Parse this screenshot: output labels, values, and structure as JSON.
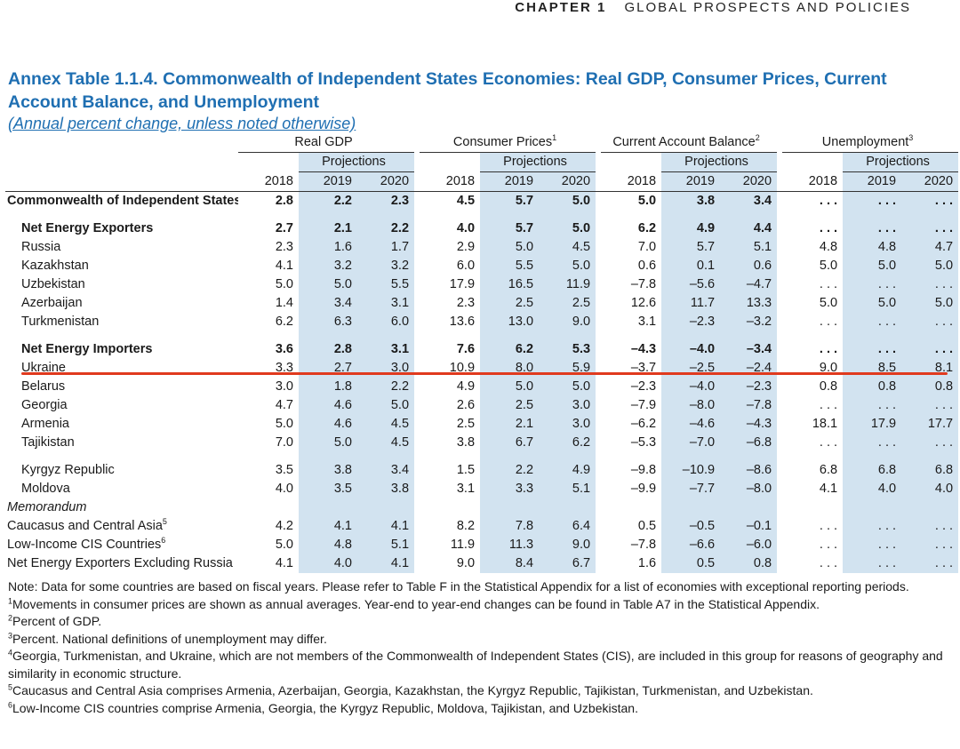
{
  "header": {
    "chapter": "CHAPTER 1",
    "section": "GLOBAL PROSPECTS AND POLICIES"
  },
  "title": "Annex Table 1.1.4. Commonwealth of Independent States Economies: Real GDP, Consumer Prices, Current Account Balance, and Unemployment",
  "subtitle": "(Annual percent change, unless noted otherwise)",
  "groups": [
    {
      "label": "Real GDP",
      "sup": ""
    },
    {
      "label": "Consumer Prices",
      "sup": "1"
    },
    {
      "label": "Current Account Balance",
      "sup": "2"
    },
    {
      "label": "Unemployment",
      "sup": "3"
    }
  ],
  "projections_label": "Projections",
  "years": [
    "2018",
    "2019",
    "2020"
  ],
  "rows": [
    {
      "label": "Commonwealth of Independent States",
      "sup": "4",
      "style": "bold-top",
      "values": [
        "2.8",
        "2.2",
        "2.3",
        "4.5",
        "5.7",
        "5.0",
        "5.0",
        "3.8",
        "3.4",
        ". . .",
        ". . .",
        ". . ."
      ]
    },
    {
      "spacer": true
    },
    {
      "label": "Net Energy Exporters",
      "style": "bold",
      "values": [
        "2.7",
        "2.1",
        "2.2",
        "4.0",
        "5.7",
        "5.0",
        "6.2",
        "4.9",
        "4.4",
        ". . .",
        ". . .",
        ". . ."
      ]
    },
    {
      "label": "Russia",
      "values": [
        "2.3",
        "1.6",
        "1.7",
        "2.9",
        "5.0",
        "4.5",
        "7.0",
        "5.7",
        "5.1",
        "4.8",
        "4.8",
        "4.7"
      ]
    },
    {
      "label": "Kazakhstan",
      "values": [
        "4.1",
        "3.2",
        "3.2",
        "6.0",
        "5.5",
        "5.0",
        "0.6",
        "0.1",
        "0.6",
        "5.0",
        "5.0",
        "5.0"
      ]
    },
    {
      "label": "Uzbekistan",
      "values": [
        "5.0",
        "5.0",
        "5.5",
        "17.9",
        "16.5",
        "11.9",
        "–7.8",
        "–5.6",
        "–4.7",
        ". . .",
        ". . .",
        ". . ."
      ]
    },
    {
      "label": "Azerbaijan",
      "values": [
        "1.4",
        "3.4",
        "3.1",
        "2.3",
        "2.5",
        "2.5",
        "12.6",
        "11.7",
        "13.3",
        "5.0",
        "5.0",
        "5.0"
      ]
    },
    {
      "label": "Turkmenistan",
      "values": [
        "6.2",
        "6.3",
        "6.0",
        "13.6",
        "13.0",
        "9.0",
        "3.1",
        "–2.3",
        "–3.2",
        ". . .",
        ". . .",
        ". . ."
      ]
    },
    {
      "spacer": true
    },
    {
      "label": "Net Energy Importers",
      "style": "bold",
      "values": [
        "3.6",
        "2.8",
        "3.1",
        "7.6",
        "6.2",
        "5.3",
        "–4.3",
        "–4.0",
        "–3.4",
        ". . .",
        ". . .",
        ". . ."
      ]
    },
    {
      "label": "Ukraine",
      "values": [
        "3.3",
        "2.7",
        "3.0",
        "10.9",
        "8.0",
        "5.9",
        "–3.7",
        "–2.5",
        "–2.4",
        "9.0",
        "8.5",
        "8.1"
      ]
    },
    {
      "label": "Belarus",
      "values": [
        "3.0",
        "1.8",
        "2.2",
        "4.9",
        "5.0",
        "5.0",
        "–2.3",
        "–4.0",
        "–2.3",
        "0.8",
        "0.8",
        "0.8"
      ]
    },
    {
      "label": "Georgia",
      "values": [
        "4.7",
        "4.6",
        "5.0",
        "2.6",
        "2.5",
        "3.0",
        "–7.9",
        "–8.0",
        "–7.8",
        ". . .",
        ". . .",
        ". . ."
      ]
    },
    {
      "label": "Armenia",
      "values": [
        "5.0",
        "4.6",
        "4.5",
        "2.5",
        "2.1",
        "3.0",
        "–6.2",
        "–4.6",
        "–4.3",
        "18.1",
        "17.9",
        "17.7"
      ]
    },
    {
      "label": "Tajikistan",
      "values": [
        "7.0",
        "5.0",
        "4.5",
        "3.8",
        "6.7",
        "6.2",
        "–5.3",
        "–7.0",
        "–6.8",
        ". . .",
        ". . .",
        ". . ."
      ]
    },
    {
      "spacer": true
    },
    {
      "label": "Kyrgyz Republic",
      "values": [
        "3.5",
        "3.8",
        "3.4",
        "1.5",
        "2.2",
        "4.9",
        "–9.8",
        "–10.9",
        "–8.6",
        "6.8",
        "6.8",
        "6.8"
      ]
    },
    {
      "label": "Moldova",
      "values": [
        "4.0",
        "3.5",
        "3.8",
        "3.1",
        "3.3",
        "5.1",
        "–9.9",
        "–7.7",
        "–8.0",
        "4.1",
        "4.0",
        "4.0"
      ]
    },
    {
      "label": "Memorandum",
      "style": "memo"
    },
    {
      "label": "Caucasus and Central Asia",
      "sup": "5",
      "style": "flush",
      "values": [
        "4.2",
        "4.1",
        "4.1",
        "8.2",
        "7.8",
        "6.4",
        "0.5",
        "–0.5",
        "–0.1",
        ". . .",
        ". . .",
        ". . ."
      ]
    },
    {
      "label": "Low-Income CIS Countries",
      "sup": "6",
      "style": "flush",
      "values": [
        "5.0",
        "4.8",
        "5.1",
        "11.9",
        "11.3",
        "9.0",
        "–7.8",
        "–6.6",
        "–6.0",
        ". . .",
        ". . .",
        ". . ."
      ]
    },
    {
      "label": "Net Energy Exporters Excluding Russia",
      "style": "flush",
      "values": [
        "4.1",
        "4.0",
        "4.1",
        "9.0",
        "8.4",
        "6.7",
        "1.6",
        "0.5",
        "0.8",
        ". . .",
        ". . .",
        ". . ."
      ]
    }
  ],
  "notes": [
    {
      "sup": "",
      "text": "Note: Data for some countries are based on fiscal years. Please refer to Table F in the Statistical Appendix for a list of economies with exceptional reporting periods."
    },
    {
      "sup": "1",
      "text": "Movements in consumer prices are shown as annual averages. Year-end to year-end changes can be found in Table A7 in the Statistical Appendix."
    },
    {
      "sup": "2",
      "text": "Percent of GDP."
    },
    {
      "sup": "3",
      "text": "Percent. National definitions of unemployment may differ."
    },
    {
      "sup": "4",
      "text": "Georgia, Turkmenistan, and Ukraine, which are not members of the Commonwealth of Independent States (CIS), are included in this group for reasons of geography and similarity in economic structure."
    },
    {
      "sup": "5",
      "text": "Caucasus and Central Asia comprises Armenia, Azerbaijan, Georgia, Kazakhstan, the Kyrgyz Republic, Tajikistan, Turkmenistan, and Uzbekistan."
    },
    {
      "sup": "6",
      "text": "Low-Income CIS countries comprise Armenia, Georgia, the Kyrgyz Republic, Moldova, Tajikistan, and Uzbekistan."
    }
  ],
  "highlight_color": "#e03a1e",
  "projection_shade": "#d2e3f0",
  "title_color": "#1f6fb2"
}
